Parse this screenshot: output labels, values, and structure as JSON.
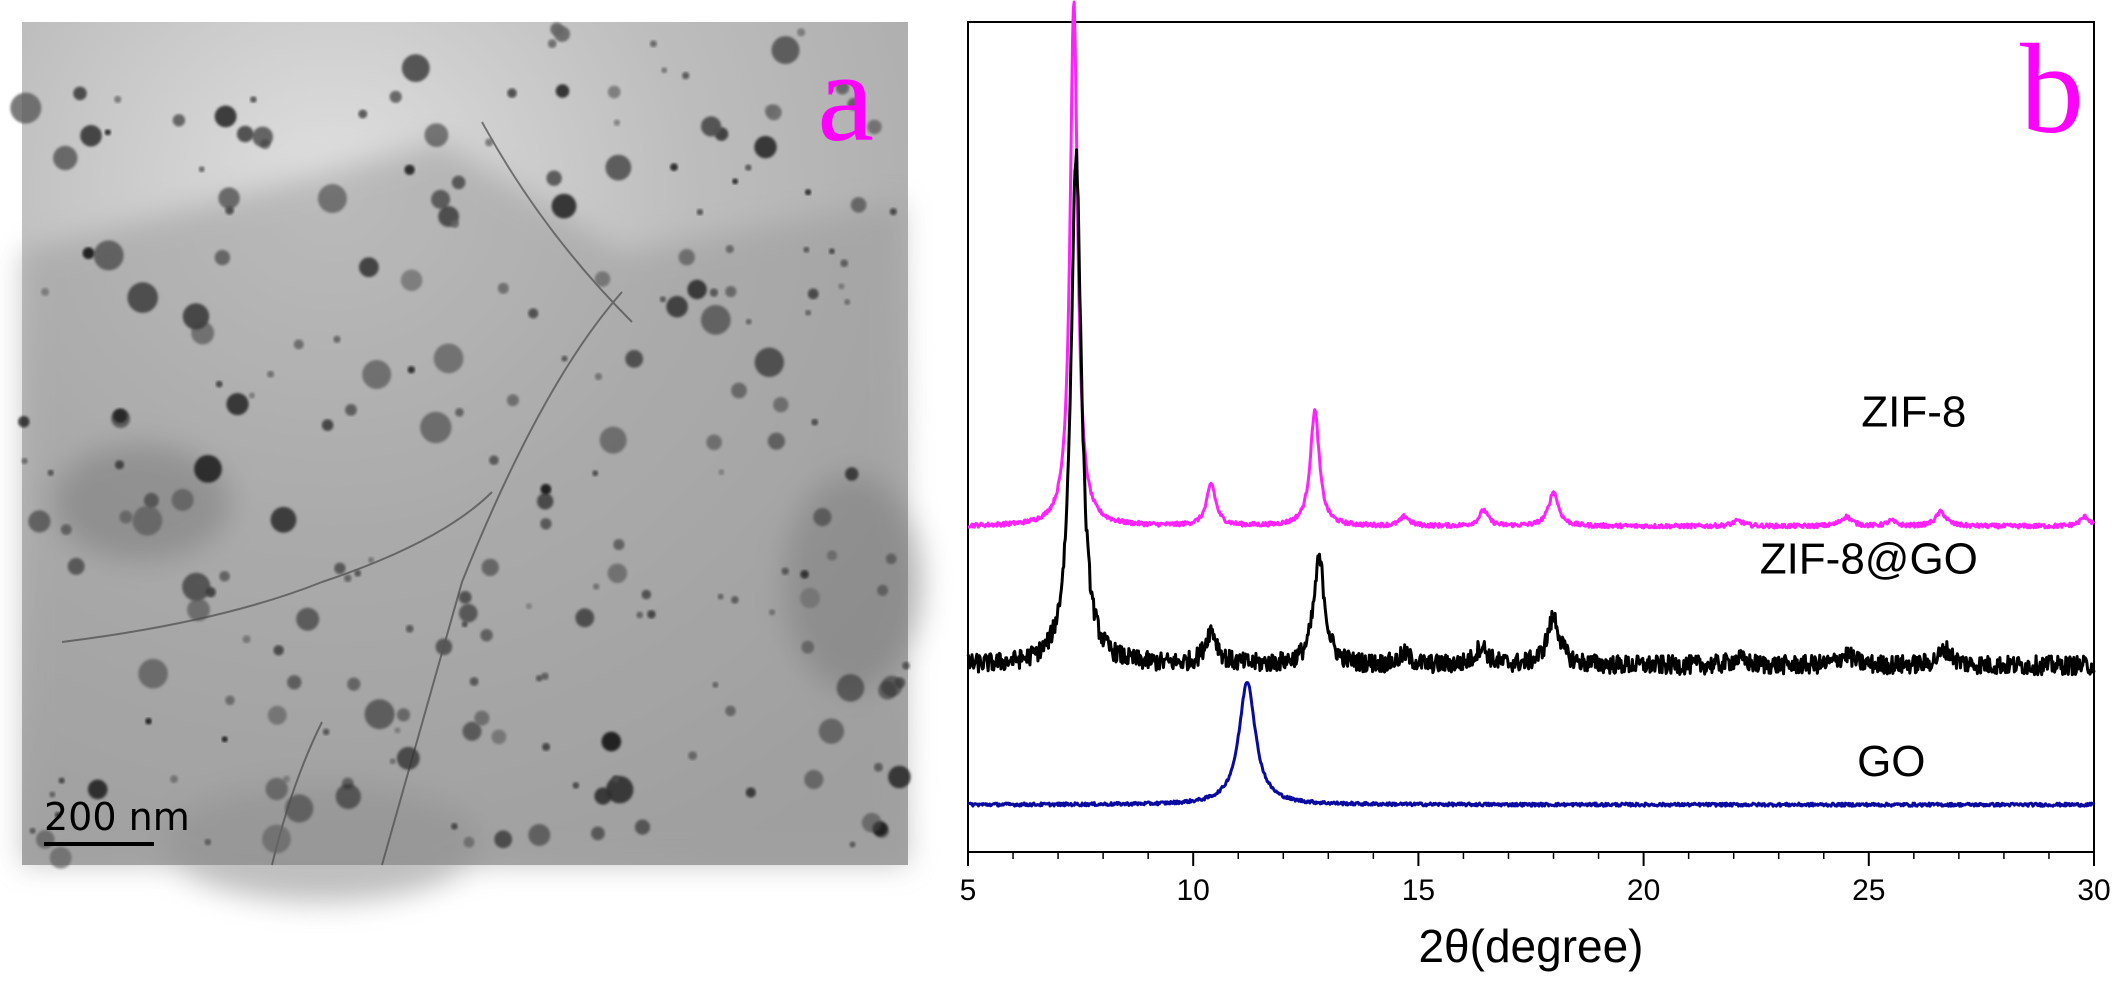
{
  "panel_a": {
    "letter": "a",
    "scale_bar_label": "200 nm",
    "letter_color": "#ff00ff"
  },
  "chart_data": {
    "type": "line",
    "panel_letter": "b",
    "xlabel": "2θ(degree)",
    "ylabel": "",
    "xlim": [
      5,
      30
    ],
    "xticks": [
      5,
      10,
      15,
      20,
      25,
      30
    ],
    "yticks_shown": false,
    "grid": false,
    "legend": "inline labels",
    "series": [
      {
        "name": "ZIF-8",
        "color": "#ff22ff",
        "baseline": 0.62,
        "noise": 0.004,
        "peaks": [
          {
            "x": 7.35,
            "height": 1.0,
            "width": 0.1
          },
          {
            "x": 10.4,
            "height": 0.08,
            "width": 0.12
          },
          {
            "x": 12.7,
            "height": 0.22,
            "width": 0.12
          },
          {
            "x": 14.7,
            "height": 0.018,
            "width": 0.12
          },
          {
            "x": 16.45,
            "height": 0.03,
            "width": 0.12
          },
          {
            "x": 18.0,
            "height": 0.065,
            "width": 0.13
          },
          {
            "x": 22.1,
            "height": 0.01,
            "width": 0.15
          },
          {
            "x": 24.5,
            "height": 0.018,
            "width": 0.15
          },
          {
            "x": 25.5,
            "height": 0.01,
            "width": 0.12
          },
          {
            "x": 26.6,
            "height": 0.027,
            "width": 0.14
          },
          {
            "x": 29.8,
            "height": 0.018,
            "width": 0.13
          }
        ],
        "label": "ZIF-8",
        "label_x": 26.0,
        "label_y": 0.81
      },
      {
        "name": "ZIF-8@GO",
        "color": "#000000",
        "baseline": 0.355,
        "noise": 0.018,
        "peaks": [
          {
            "x": 7.4,
            "height": 0.97,
            "width": 0.14
          },
          {
            "x": 10.4,
            "height": 0.065,
            "width": 0.16
          },
          {
            "x": 12.8,
            "height": 0.2,
            "width": 0.15
          },
          {
            "x": 14.7,
            "height": 0.02,
            "width": 0.15
          },
          {
            "x": 16.4,
            "height": 0.035,
            "width": 0.16
          },
          {
            "x": 18.0,
            "height": 0.09,
            "width": 0.17
          },
          {
            "x": 22.1,
            "height": 0.012,
            "width": 0.2
          },
          {
            "x": 24.5,
            "height": 0.02,
            "width": 0.2
          },
          {
            "x": 26.7,
            "height": 0.03,
            "width": 0.18
          }
        ],
        "label": "ZIF-8@GO",
        "label_x": 25.0,
        "label_y": 0.53
      },
      {
        "name": "GO",
        "color": "#0a0aa0",
        "baseline": 0.09,
        "noise": 0.003,
        "peaks": [
          {
            "x": 11.2,
            "height": 0.235,
            "width": 0.22
          }
        ],
        "label": "GO",
        "label_x": 25.5,
        "label_y": 0.145
      }
    ]
  }
}
